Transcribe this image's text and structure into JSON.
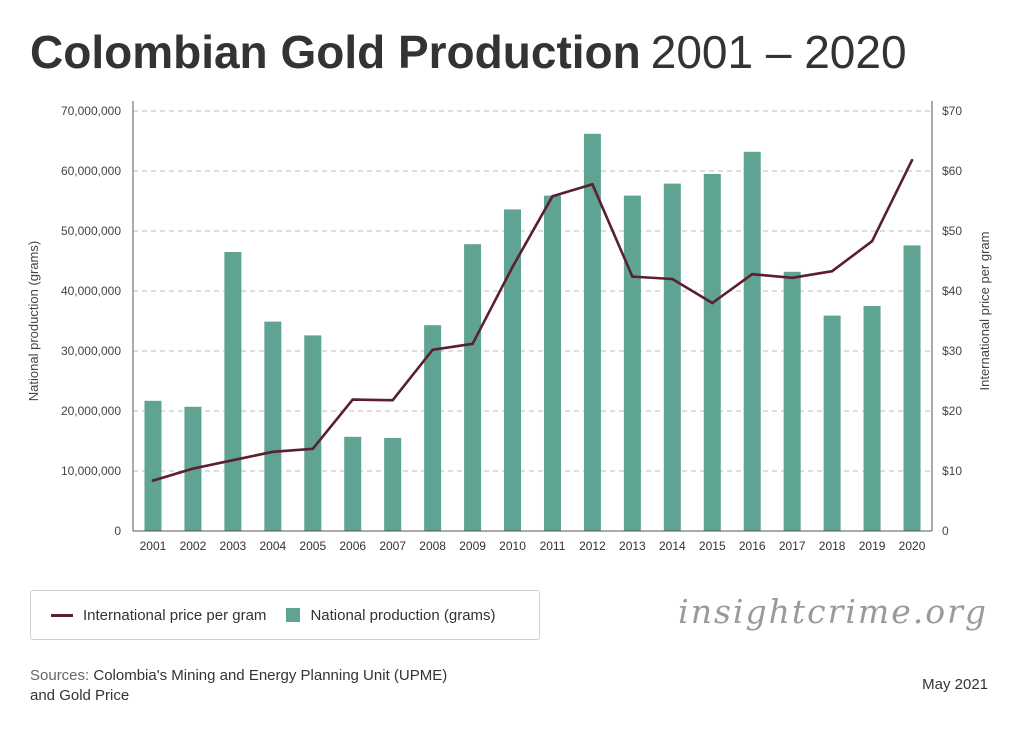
{
  "title": {
    "bold": "Colombian Gold Production",
    "light": "2001 – 2020"
  },
  "colors": {
    "bar": "#5fa392",
    "line": "#5b1f30",
    "grid": "#bdbdbd",
    "axis": "#555555"
  },
  "legend": {
    "line_label": "International price per gram",
    "bar_label": "National production (grams)"
  },
  "brand": "insightcrime.org",
  "sources": {
    "label": "Sources:",
    "line1": "Colombia's Mining and Energy Planning Unit (UPME)",
    "line2": "and Gold Price"
  },
  "date": "May 2021",
  "chart_data": {
    "type": "bar",
    "title": "Colombian Gold Production 2001 – 2020",
    "categories": [
      "2001",
      "2002",
      "2003",
      "2004",
      "2005",
      "2006",
      "2007",
      "2008",
      "2009",
      "2010",
      "2011",
      "2012",
      "2013",
      "2014",
      "2015",
      "2016",
      "2017",
      "2018",
      "2019",
      "2020"
    ],
    "series": [
      {
        "name": "National production (grams)",
        "type": "bar",
        "axis": "left",
        "values": [
          21700000,
          20700000,
          46500000,
          34900000,
          32600000,
          15700000,
          15500000,
          34300000,
          47800000,
          53600000,
          55900000,
          66200000,
          55900000,
          57900000,
          59500000,
          63200000,
          43200000,
          35900000,
          37500000,
          47600000
        ]
      },
      {
        "name": "International price per gram",
        "type": "line",
        "axis": "right",
        "values": [
          8.4,
          10.4,
          11.8,
          13.2,
          13.7,
          21.9,
          21.8,
          30.2,
          31.2,
          44.0,
          55.8,
          57.8,
          42.4,
          42.0,
          38.0,
          42.8,
          42.2,
          43.3,
          48.3,
          61.8
        ]
      }
    ],
    "ylabel": "National production (grams)",
    "ylabel_right": "International price per gram",
    "ylim": [
      0,
      70000000
    ],
    "ylim_right": [
      0,
      70
    ],
    "yticks": [
      "0",
      "10,000,000",
      "20,000,000",
      "30,000,000",
      "40,000,000",
      "50,000,000",
      "60,000,000",
      "70,000,000"
    ],
    "yticks_right": [
      "0",
      "$10",
      "$20",
      "$30",
      "$40",
      "$50",
      "$60",
      "$70"
    ],
    "grid": true,
    "legend_position": "bottom-left"
  }
}
